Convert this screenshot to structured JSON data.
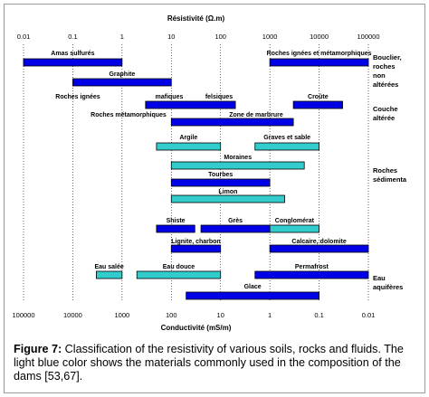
{
  "chart_data": {
    "type": "bar",
    "orientation": "horizontal-range",
    "x_scale": "log",
    "top_axis": {
      "label": "Résistivité (Ω.m)",
      "ticks": [
        0.01,
        0.1,
        1,
        10,
        100,
        1000,
        10000,
        100000
      ],
      "tick_labels": [
        "0.01",
        "0.1",
        "1",
        "10",
        "100",
        "1000",
        "10000",
        "100000"
      ]
    },
    "bottom_axis": {
      "label": "Conductivité (mS/m)",
      "tick_labels": [
        "100000",
        "10000",
        "1000",
        "100",
        "10",
        "1",
        "0.1",
        "0.01"
      ]
    },
    "xlim": [
      0.01,
      100000
    ],
    "grid": "dotted vertical lines at decades",
    "colors": {
      "standard": "#0000e6",
      "dam_material": "#33cccc"
    },
    "bars": [
      {
        "label": "Amas sulfurés",
        "from": 0.01,
        "to": 1,
        "dam": false
      },
      {
        "label": "Roches ignées et métamorphiques",
        "from": 1000,
        "to": 100000,
        "dam": false
      },
      {
        "label": "Graphite",
        "from": 0.1,
        "to": 10,
        "dam": false
      },
      {
        "label": "Roches ignées",
        "from": 3,
        "to": 200,
        "dam": false
      },
      {
        "label": "Croûte",
        "from": 3000,
        "to": 30000,
        "dam": false
      },
      {
        "label": "Roches métamorphiques",
        "from": 10,
        "to": 3000,
        "dam": false
      },
      {
        "label": "Argile",
        "from": 5,
        "to": 100,
        "dam": true
      },
      {
        "label": "Graves et sable",
        "from": 500,
        "to": 10000,
        "dam": true
      },
      {
        "label": "Moraines",
        "from": 10,
        "to": 5000,
        "dam": true
      },
      {
        "label": "Tourbes",
        "from": 10,
        "to": 1000,
        "dam": false
      },
      {
        "label": "Limon",
        "from": 10,
        "to": 2000,
        "dam": true
      },
      {
        "label": "Shiste",
        "from": 5,
        "to": 30,
        "dam": false
      },
      {
        "label": "Grès",
        "from": 40,
        "to": 1000,
        "dam": false
      },
      {
        "label": "Conglomérat",
        "from": 1000,
        "to": 10000,
        "dam": true
      },
      {
        "label": "Lignite, charbon",
        "from": 10,
        "to": 100,
        "dam": false
      },
      {
        "label": "Calcaire, dolomite",
        "from": 1000,
        "to": 100000,
        "dam": false
      },
      {
        "label": "Eau salée",
        "from": 0.3,
        "to": 1,
        "dam": true
      },
      {
        "label": "Eau douce",
        "from": 2,
        "to": 100,
        "dam": true
      },
      {
        "label": "Permafrost",
        "from": 500,
        "to": 100000,
        "dam": false
      },
      {
        "label": "Glace",
        "from": 20,
        "to": 10000,
        "dam": false
      }
    ],
    "annotations": [
      {
        "text": "mafiques"
      },
      {
        "text": "felsiques"
      },
      {
        "text": "Zone de marbrure"
      }
    ],
    "groups": [
      {
        "lines": [
          "Bouclier,",
          "roches",
          "non",
          "altérées"
        ]
      },
      {
        "lines": [
          "Couche",
          "altérée"
        ]
      },
      {
        "lines": [
          "Roches",
          "sédimenta"
        ]
      },
      {
        "lines": [
          "Eau",
          "aquifères"
        ]
      }
    ]
  },
  "caption": {
    "label": "Figure 7:",
    "text": " Classification of the resistivity of various soils, rocks and fluids. The light blue color shows the materials commonly used in the composition of the dams [53,67]."
  }
}
